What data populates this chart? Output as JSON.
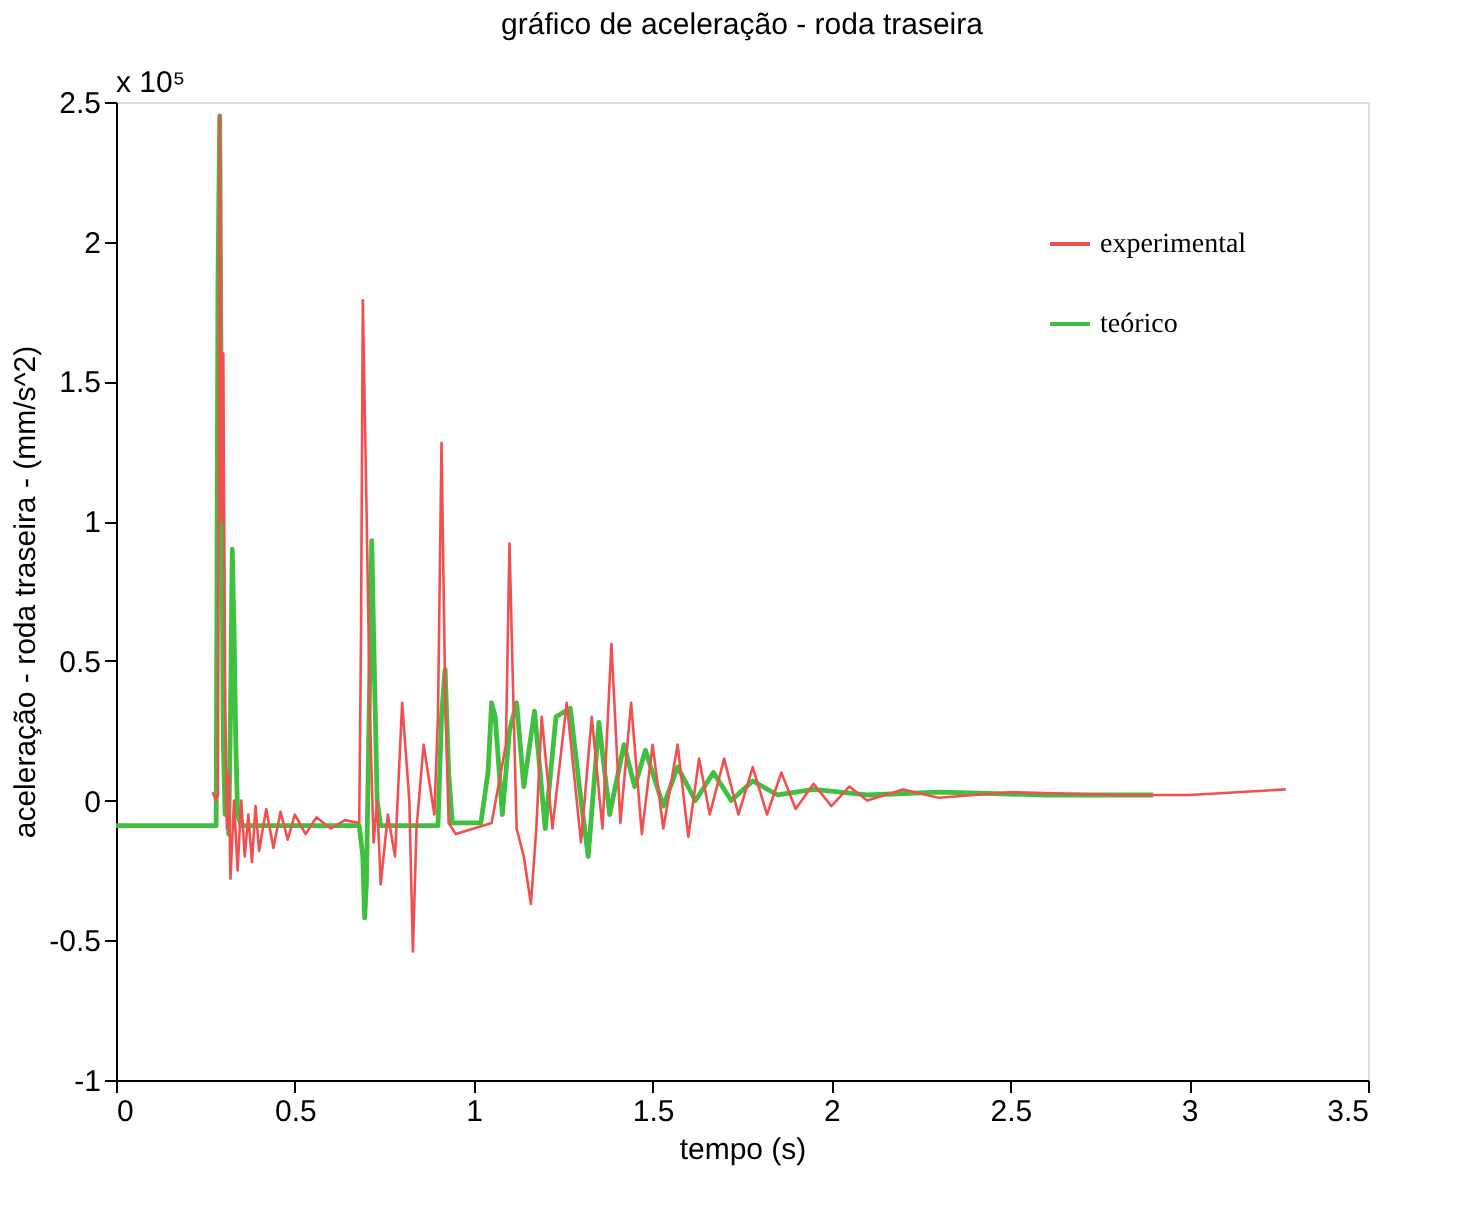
{
  "chart_data": {
    "type": "line",
    "title": "gráfico de aceleração - roda traseira",
    "xlabel": "tempo (s)",
    "ylabel": "aceleração - roda traseira - (mm/s^2)",
    "annotations": [
      "x 10⁵"
    ],
    "xlim": [
      0,
      3.5
    ],
    "xticks": [
      0,
      0.5,
      1,
      1.5,
      2,
      2.5,
      3,
      3.5
    ],
    "ylim": [
      -1,
      2.5
    ],
    "yticks": [
      -1,
      -0.5,
      0,
      0.5,
      1,
      1.5,
      2,
      2.5
    ],
    "grid": false,
    "legend": "top right",
    "line_style": "solid",
    "marker": "none",
    "series": [
      {
        "name": "experimental",
        "color": "#f05050",
        "x": [
          0.27,
          0.28,
          0.285,
          0.29,
          0.295,
          0.3,
          0.305,
          0.31,
          0.315,
          0.32,
          0.33,
          0.34,
          0.35,
          0.36,
          0.37,
          0.38,
          0.39,
          0.4,
          0.42,
          0.44,
          0.46,
          0.48,
          0.5,
          0.53,
          0.56,
          0.6,
          0.64,
          0.68,
          0.685,
          0.69,
          0.7,
          0.71,
          0.72,
          0.73,
          0.74,
          0.76,
          0.78,
          0.8,
          0.82,
          0.83,
          0.84,
          0.86,
          0.89,
          0.9,
          0.91,
          0.92,
          0.93,
          0.95,
          1.0,
          1.05,
          1.09,
          1.1,
          1.11,
          1.12,
          1.14,
          1.16,
          1.175,
          1.19,
          1.22,
          1.26,
          1.3,
          1.33,
          1.36,
          1.385,
          1.41,
          1.44,
          1.47,
          1.5,
          1.53,
          1.57,
          1.6,
          1.63,
          1.66,
          1.7,
          1.74,
          1.78,
          1.82,
          1.86,
          1.9,
          1.95,
          2.0,
          2.05,
          2.1,
          2.2,
          2.3,
          2.5,
          2.8,
          3.0,
          3.27
        ],
        "values": [
          0.03,
          0.0,
          0.02,
          2.45,
          1.0,
          1.6,
          0.4,
          -0.1,
          0.1,
          -0.28,
          0.0,
          -0.25,
          0.0,
          -0.2,
          -0.05,
          -0.22,
          -0.02,
          -0.18,
          -0.03,
          -0.17,
          -0.04,
          -0.14,
          -0.05,
          -0.12,
          -0.06,
          -0.1,
          -0.07,
          -0.08,
          0.6,
          1.79,
          1.07,
          0.3,
          -0.15,
          0.0,
          -0.3,
          -0.05,
          -0.2,
          0.35,
          0.0,
          -0.54,
          -0.1,
          0.2,
          -0.05,
          0.3,
          1.28,
          0.4,
          -0.08,
          -0.12,
          -0.1,
          -0.08,
          0.2,
          0.92,
          0.4,
          -0.1,
          -0.2,
          -0.37,
          -0.1,
          0.3,
          -0.1,
          0.35,
          -0.15,
          0.3,
          -0.1,
          0.56,
          -0.08,
          0.35,
          -0.12,
          0.2,
          -0.1,
          0.2,
          -0.13,
          0.15,
          -0.05,
          0.15,
          -0.05,
          0.12,
          -0.05,
          0.1,
          -0.03,
          0.06,
          -0.02,
          0.05,
          0.0,
          0.04,
          0.01,
          0.03,
          0.02,
          0.02,
          0.04
        ]
      },
      {
        "name": "teórico",
        "color": "#40c040",
        "x": [
          0,
          0.28,
          0.285,
          0.29,
          0.295,
          0.3,
          0.305,
          0.31,
          0.315,
          0.32,
          0.325,
          0.33,
          0.335,
          0.34,
          0.35,
          0.36,
          0.37,
          0.68,
          0.69,
          0.695,
          0.7,
          0.71,
          0.715,
          0.72,
          0.73,
          0.74,
          0.75,
          0.9,
          0.91,
          0.92,
          0.93,
          0.94,
          1.02,
          1.04,
          1.05,
          1.06,
          1.08,
          1.1,
          1.12,
          1.14,
          1.17,
          1.2,
          1.23,
          1.27,
          1.3,
          1.32,
          1.35,
          1.38,
          1.42,
          1.45,
          1.48,
          1.53,
          1.57,
          1.62,
          1.67,
          1.72,
          1.78,
          1.85,
          1.95,
          2.1,
          2.3,
          2.6,
          2.9
        ],
        "values": [
          -0.09,
          -0.09,
          1.85,
          2.45,
          1.2,
          0.2,
          -0.05,
          0.1,
          -0.12,
          0.3,
          0.9,
          0.6,
          0.2,
          -0.05,
          -0.09,
          -0.09,
          -0.09,
          -0.09,
          -0.2,
          -0.42,
          -0.3,
          0.5,
          0.93,
          0.6,
          0,
          -0.09,
          -0.09,
          -0.09,
          0.3,
          0.47,
          0.1,
          -0.08,
          -0.08,
          0.1,
          0.35,
          0.3,
          -0.05,
          0.25,
          0.35,
          0.05,
          0.32,
          -0.1,
          0.3,
          0.33,
          0.0,
          -0.2,
          0.28,
          -0.05,
          0.2,
          0.05,
          0.18,
          -0.02,
          0.12,
          0.0,
          0.1,
          0.0,
          0.07,
          0.02,
          0.04,
          0.02,
          0.03,
          0.02,
          0.02
        ]
      }
    ]
  }
}
